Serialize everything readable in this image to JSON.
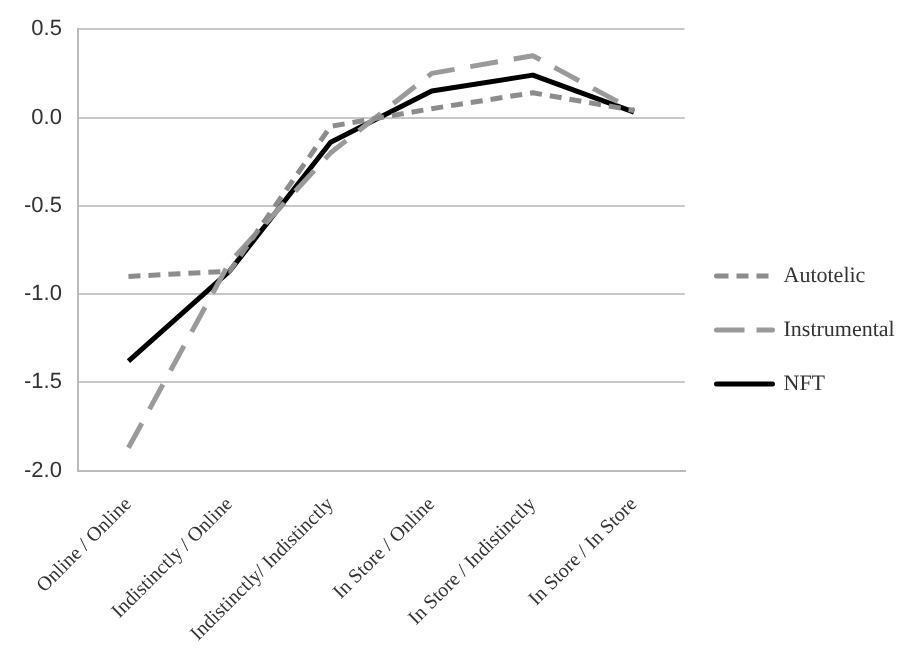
{
  "chart_data": {
    "type": "line",
    "categories": [
      "Online / Online",
      "Indistinctly / Online",
      "Indistinctly/ Indistinctly",
      "In Store / Online",
      "In Store / Indistinctly",
      "In Store / In Store"
    ],
    "series": [
      {
        "name": "Autotelic",
        "color": "#8c8c8c",
        "line_style": "dashed",
        "values": [
          -0.9,
          -0.87,
          -0.05,
          0.05,
          0.14,
          0.04
        ]
      },
      {
        "name": "Instrumental",
        "color": "#9a9a9a",
        "line_style": "dashed",
        "values": [
          -1.87,
          -0.82,
          -0.2,
          0.25,
          0.35,
          0.04
        ]
      },
      {
        "name": "NFT",
        "color": "#000000",
        "line_style": "solid",
        "values": [
          -1.38,
          -0.87,
          -0.14,
          0.15,
          0.24,
          0.03
        ]
      }
    ],
    "ylim": [
      -2.0,
      0.5
    ],
    "yticks": [
      {
        "value": -2,
        "label": "-2.0"
      },
      {
        "value": -1.5,
        "label": "-1.5"
      },
      {
        "value": -1,
        "label": "-1.0"
      },
      {
        "value": -0.5,
        "label": "-0.5"
      },
      {
        "value": 0,
        "label": "0.0"
      },
      {
        "value": 0.5,
        "label": "0.5"
      }
    ],
    "grid": "y",
    "legend": "right",
    "marker": "none"
  }
}
